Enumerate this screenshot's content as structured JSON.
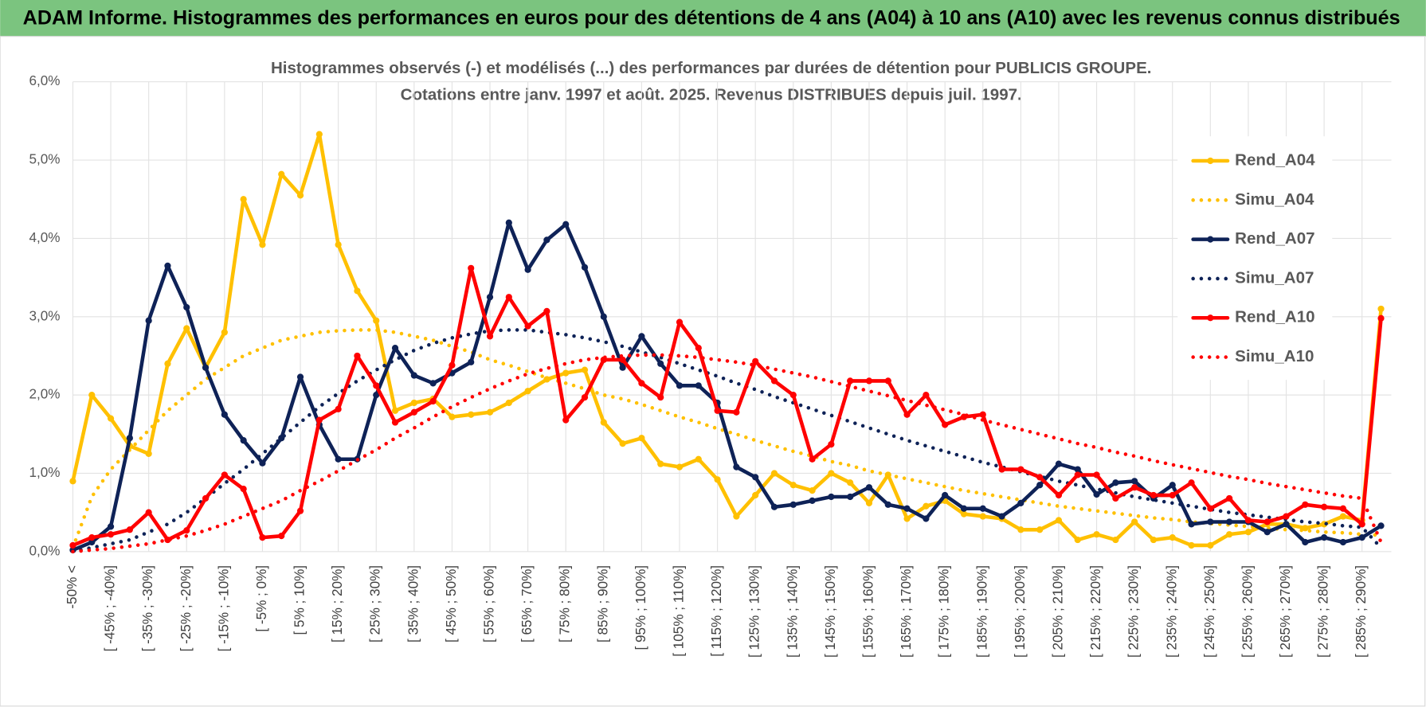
{
  "chart_data": {
    "type": "line",
    "title": "ADAM Informe. Histogrammes des performances en euros pour des détentions de 4 ans (A04) à 10 ans (A10) avec les revenus connus distribués",
    "subtitle": [
      "Histogrammes observés (-) et modélisés (...) des performances par durées de détention pour PUBLICIS GROUPE.",
      "Cotations entre janv. 1997 et août. 2025. Revenus DISTRIBUES depuis juil. 1997."
    ],
    "categories": [
      "-50% <",
      null,
      "[ -45% ; -40%]",
      null,
      "[ -35% ; -30%]",
      null,
      "[ -25% ; -20%]",
      null,
      "[ -15% ; -10%]",
      null,
      "[ -5% ; 0%]",
      null,
      "[ 5% ; 10%]",
      null,
      "[ 15% ; 20%]",
      null,
      "[ 25% ; 30%]",
      null,
      "[ 35% ; 40%]",
      null,
      "[ 45% ; 50%]",
      null,
      "[ 55% ; 60%]",
      null,
      "[ 65% ; 70%]",
      null,
      "[ 75% ; 80%]",
      null,
      "[ 85% ; 90%]",
      null,
      "[ 95% ; 100%]",
      null,
      "[ 105% ; 110%]",
      null,
      "[ 115% ; 120%]",
      null,
      "[ 125% ; 130%]",
      null,
      "[ 135% ; 140%]",
      null,
      "[ 145% ; 150%]",
      null,
      "[ 155% ; 160%]",
      null,
      "[ 165% ; 170%]",
      null,
      "[ 175% ; 180%]",
      null,
      "[ 185% ; 190%]",
      null,
      "[ 195% ; 200%]",
      null,
      "[ 205% ; 210%]",
      null,
      "[ 215% ; 220%]",
      null,
      "[ 225% ; 230%]",
      null,
      "[ 235% ; 240%]",
      null,
      "[ 245% ; 250%]",
      null,
      "[ 255% ; 260%]",
      null,
      "[ 265% ; 270%]",
      null,
      "[ 275% ; 280%]",
      null,
      "[ 285% ; 290%]",
      null
    ],
    "series": [
      {
        "name": "Rend_A04",
        "color": "#FFC000",
        "line_style": "solid",
        "markers": true,
        "values": [
          0.9,
          2.0,
          1.7,
          1.35,
          1.25,
          2.4,
          2.85,
          2.35,
          2.8,
          4.5,
          3.92,
          4.82,
          4.55,
          5.33,
          3.92,
          3.33,
          2.95,
          1.8,
          1.9,
          1.95,
          1.72,
          1.75,
          1.78,
          1.9,
          2.05,
          2.2,
          2.28,
          2.32,
          1.65,
          1.38,
          1.45,
          1.12,
          1.08,
          1.18,
          0.92,
          0.45,
          0.72,
          1.0,
          0.85,
          0.78,
          1.0,
          0.88,
          0.62,
          0.98,
          0.42,
          0.58,
          0.65,
          0.48,
          0.45,
          0.42,
          0.28,
          0.28,
          0.4,
          0.15,
          0.22,
          0.15,
          0.38,
          0.15,
          0.18,
          0.08,
          0.08,
          0.22,
          0.25,
          0.35,
          0.35,
          0.3,
          0.35,
          0.45,
          0.4,
          3.1
        ]
      },
      {
        "name": "Simu_A04",
        "color": "#FFC000",
        "line_style": "dotted",
        "markers": false,
        "values": [
          0.05,
          0.7,
          1.05,
          1.3,
          1.55,
          1.8,
          2.0,
          2.2,
          2.35,
          2.5,
          2.6,
          2.7,
          2.75,
          2.8,
          2.82,
          2.83,
          2.83,
          2.8,
          2.75,
          2.7,
          2.62,
          2.55,
          2.45,
          2.38,
          2.3,
          2.22,
          2.15,
          2.08,
          2.0,
          1.95,
          1.88,
          1.8,
          1.72,
          1.65,
          1.57,
          1.5,
          1.42,
          1.35,
          1.28,
          1.22,
          1.15,
          1.1,
          1.03,
          0.98,
          0.93,
          0.88,
          0.83,
          0.78,
          0.74,
          0.7,
          0.66,
          0.62,
          0.58,
          0.55,
          0.52,
          0.49,
          0.46,
          0.43,
          0.41,
          0.38,
          0.36,
          0.34,
          0.32,
          0.3,
          0.28,
          0.27,
          0.25,
          0.24,
          0.22,
          0.21
        ]
      },
      {
        "name": "Rend_A07",
        "color": "#0E2257",
        "line_style": "solid",
        "markers": true,
        "values": [
          0.02,
          0.12,
          0.32,
          1.45,
          2.95,
          3.65,
          3.12,
          2.35,
          1.75,
          1.42,
          1.13,
          1.45,
          2.23,
          1.62,
          1.18,
          1.18,
          2.0,
          2.6,
          2.25,
          2.15,
          2.28,
          2.42,
          3.25,
          4.2,
          3.6,
          3.98,
          4.18,
          3.63,
          3.0,
          2.35,
          2.75,
          2.4,
          2.12,
          2.12,
          1.9,
          1.08,
          0.95,
          0.57,
          0.6,
          0.65,
          0.7,
          0.7,
          0.82,
          0.6,
          0.55,
          0.42,
          0.72,
          0.55,
          0.55,
          0.45,
          0.62,
          0.85,
          1.12,
          1.05,
          0.73,
          0.88,
          0.9,
          0.68,
          0.85,
          0.35,
          0.38,
          0.38,
          0.38,
          0.25,
          0.35,
          0.12,
          0.18,
          0.12,
          0.18,
          0.33
        ]
      },
      {
        "name": "Simu_A07",
        "color": "#0E2257",
        "line_style": "dotted",
        "markers": false,
        "values": [
          0.0,
          0.05,
          0.1,
          0.15,
          0.25,
          0.35,
          0.5,
          0.68,
          0.87,
          1.05,
          1.25,
          1.45,
          1.65,
          1.85,
          2.02,
          2.18,
          2.32,
          2.45,
          2.57,
          2.66,
          2.73,
          2.78,
          2.82,
          2.83,
          2.83,
          2.8,
          2.77,
          2.73,
          2.68,
          2.62,
          2.55,
          2.48,
          2.4,
          2.32,
          2.24,
          2.15,
          2.07,
          1.98,
          1.9,
          1.82,
          1.74,
          1.66,
          1.58,
          1.5,
          1.42,
          1.35,
          1.28,
          1.21,
          1.14,
          1.08,
          1.02,
          0.96,
          0.9,
          0.85,
          0.8,
          0.75,
          0.7,
          0.66,
          0.62,
          0.58,
          0.54,
          0.5,
          0.47,
          0.44,
          0.41,
          0.38,
          0.36,
          0.33,
          0.31,
          0.05
        ]
      },
      {
        "name": "Rend_A10",
        "color": "#FF0000",
        "line_style": "solid",
        "markers": true,
        "values": [
          0.08,
          0.18,
          0.22,
          0.28,
          0.5,
          0.15,
          0.27,
          0.68,
          0.98,
          0.8,
          0.18,
          0.2,
          0.52,
          1.68,
          1.82,
          2.5,
          2.12,
          1.65,
          1.78,
          1.92,
          2.38,
          3.62,
          2.75,
          3.25,
          2.88,
          3.07,
          1.68,
          1.97,
          2.45,
          2.45,
          2.15,
          1.97,
          2.93,
          2.6,
          1.8,
          1.78,
          2.43,
          2.18,
          2.0,
          1.18,
          1.37,
          2.18,
          2.18,
          2.18,
          1.75,
          2.0,
          1.62,
          1.72,
          1.75,
          1.05,
          1.05,
          0.95,
          0.72,
          0.98,
          0.98,
          0.68,
          0.82,
          0.72,
          0.72,
          0.88,
          0.55,
          0.68,
          0.4,
          0.38,
          0.45,
          0.6,
          0.57,
          0.55,
          0.35,
          2.98
        ]
      },
      {
        "name": "Simu_A10",
        "color": "#FF0000",
        "line_style": "dotted",
        "markers": false,
        "values": [
          0.0,
          0.02,
          0.04,
          0.07,
          0.1,
          0.15,
          0.2,
          0.27,
          0.35,
          0.45,
          0.55,
          0.65,
          0.78,
          0.9,
          1.03,
          1.17,
          1.3,
          1.45,
          1.58,
          1.72,
          1.85,
          1.97,
          2.08,
          2.18,
          2.27,
          2.34,
          2.4,
          2.45,
          2.48,
          2.5,
          2.51,
          2.51,
          2.5,
          2.48,
          2.45,
          2.42,
          2.38,
          2.33,
          2.28,
          2.23,
          2.17,
          2.11,
          2.05,
          1.99,
          1.93,
          1.87,
          1.81,
          1.75,
          1.68,
          1.62,
          1.56,
          1.5,
          1.44,
          1.38,
          1.33,
          1.27,
          1.22,
          1.16,
          1.11,
          1.06,
          1.01,
          0.96,
          0.92,
          0.87,
          0.83,
          0.79,
          0.75,
          0.71,
          0.68,
          0.12
        ]
      }
    ],
    "ylim": [
      0,
      6
    ],
    "yticks": [
      {
        "value": 0,
        "label": "0,0%"
      },
      {
        "value": 1,
        "label": "1,0%"
      },
      {
        "value": 2,
        "label": "2,0%"
      },
      {
        "value": 3,
        "label": "3,0%"
      },
      {
        "value": 4,
        "label": "4,0%"
      },
      {
        "value": 5,
        "label": "5,0%"
      },
      {
        "value": 6,
        "label": "6,0%"
      }
    ],
    "grid": true,
    "legend": "right"
  }
}
